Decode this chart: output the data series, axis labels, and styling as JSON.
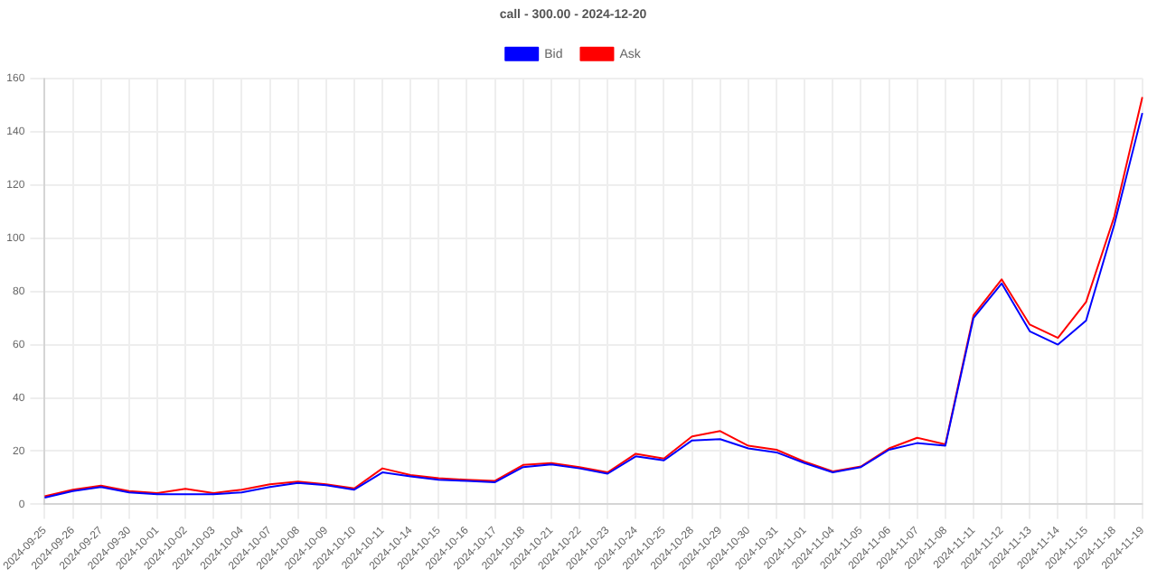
{
  "chart_data": {
    "type": "line",
    "title": "call - 300.00 - 2024-12-20",
    "categories": [
      "2024-09-25",
      "2024-09-26",
      "2024-09-27",
      "2024-09-30",
      "2024-10-01",
      "2024-10-02",
      "2024-10-03",
      "2024-10-04",
      "2024-10-07",
      "2024-10-08",
      "2024-10-09",
      "2024-10-10",
      "2024-10-11",
      "2024-10-14",
      "2024-10-15",
      "2024-10-16",
      "2024-10-17",
      "2024-10-18",
      "2024-10-21",
      "2024-10-22",
      "2024-10-23",
      "2024-10-24",
      "2024-10-25",
      "2024-10-28",
      "2024-10-29",
      "2024-10-30",
      "2024-10-31",
      "2024-11-01",
      "2024-11-04",
      "2024-11-05",
      "2024-11-06",
      "2024-11-07",
      "2024-11-08",
      "2024-11-11",
      "2024-11-12",
      "2024-11-13",
      "2024-11-14",
      "2024-11-15",
      "2024-11-18",
      "2024-11-19"
    ],
    "series": [
      {
        "name": "Bid",
        "color": "#0000ff",
        "values": [
          2.5,
          5,
          6.5,
          4.5,
          3.8,
          3.8,
          3.8,
          4.5,
          6.5,
          8,
          7.2,
          5.5,
          12,
          10.5,
          9.2,
          8.8,
          8.3,
          14,
          15,
          13.5,
          11.5,
          18,
          16.5,
          24,
          24.5,
          21,
          19.5,
          15.5,
          12,
          14,
          20.5,
          23,
          22,
          70,
          83,
          65,
          60,
          69,
          105,
          147
        ]
      },
      {
        "name": "Ask",
        "color": "#ff0000",
        "values": [
          3,
          5.5,
          7,
          5,
          4.2,
          5.8,
          4.2,
          5.5,
          7.5,
          8.5,
          7.5,
          6,
          13.5,
          11,
          9.8,
          9.2,
          8.8,
          14.8,
          15.5,
          14,
          12,
          19,
          17.2,
          25.5,
          27.5,
          22,
          20.5,
          16,
          12.4,
          14.2,
          21,
          25,
          22.5,
          71,
          84.5,
          67.5,
          62.5,
          76,
          108,
          153
        ]
      }
    ],
    "ylim": [
      0,
      160
    ],
    "yticks": [
      0,
      20,
      40,
      60,
      80,
      100,
      120,
      140,
      160
    ],
    "grid": true,
    "legend": "top",
    "marker": "none",
    "line_style": "solid"
  }
}
